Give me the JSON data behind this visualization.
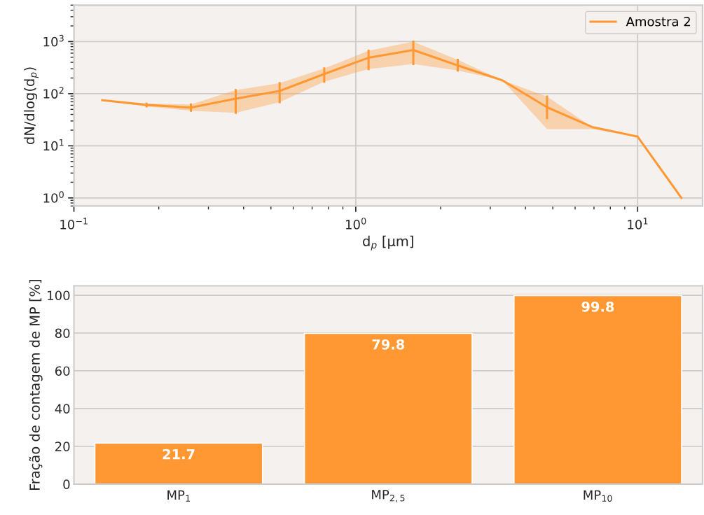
{
  "chart_data": [
    {
      "type": "line",
      "xlabel": "d$_{p}$ [μm]",
      "ylabel": "dN/dlog(d$_{p}$)",
      "log": "xy",
      "grid": true,
      "legend": "top right",
      "marker": "none",
      "line_style": "solid",
      "xlim": [
        0.1,
        17
      ],
      "ylim": [
        0.7,
        5000
      ],
      "xticks": [
        {
          "value": 0.1,
          "label": "10$^{−1}$"
        },
        {
          "value": 1,
          "label": "10$^{0}$"
        },
        {
          "value": 10,
          "label": "10$^{1}$"
        }
      ],
      "yticks": [
        {
          "value": 1,
          "label": "10$^{0}$"
        },
        {
          "value": 10,
          "label": "10$^{1}$"
        },
        {
          "value": 100,
          "label": "10$^{2}$"
        },
        {
          "value": 1000,
          "label": "10$^{3}$"
        }
      ],
      "series": [
        {
          "name": "Amostra 2",
          "color": "#ff9833",
          "x": [
            0.126,
            0.181,
            0.26,
            0.375,
            0.537,
            0.773,
            1.11,
            1.6,
            2.3,
            3.31,
            4.77,
            6.89,
            10,
            14.3
          ],
          "values": [
            75,
            61,
            54,
            80,
            113,
            239,
            489,
            689,
            348,
            181,
            55,
            23,
            15,
            1
          ],
          "lower": [
            75,
            57,
            47,
            43,
            69,
            170,
            297,
            370,
            279,
            181,
            21,
            21,
            15,
            1
          ],
          "upper": [
            75,
            64,
            62,
            117,
            160,
            306,
            667,
            1000,
            446,
            181,
            88,
            23,
            15,
            1
          ],
          "errors": [
            null,
            [
              57,
              64
            ],
            [
              47,
              62
            ],
            [
              43,
              117
            ],
            [
              69,
              160
            ],
            [
              170,
              306
            ],
            [
              297,
              667
            ],
            [
              370,
              1000
            ],
            [
              279,
              446
            ],
            null,
            [
              34,
              88
            ],
            null,
            null,
            null
          ]
        }
      ]
    },
    {
      "type": "bar",
      "ylabel": "Fração de contagem de MP [%]",
      "categories": [
        "MP$_{1}$",
        "MP$_{2,5}$",
        "MP$_{10}$"
      ],
      "values": [
        21.7,
        79.8,
        99.8
      ],
      "color": "#ff9833",
      "data_labels": true,
      "grid": "y",
      "ylim": [
        0,
        105
      ],
      "yticks": [
        0,
        20,
        40,
        60,
        80,
        100
      ]
    }
  ]
}
